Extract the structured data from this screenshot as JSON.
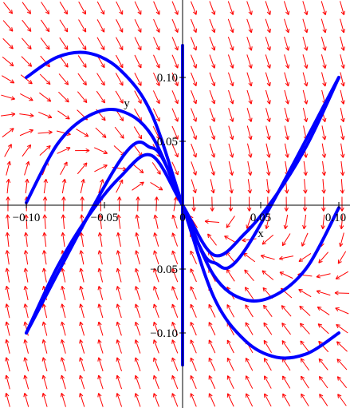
{
  "chart_data": {
    "type": "line",
    "title": "",
    "xlabel": "x",
    "ylabel": "y",
    "xlim": [
      -0.1,
      0.1
    ],
    "ylim": [
      -0.125,
      0.125
    ],
    "x_ticks": [
      -0.1,
      -0.05,
      0,
      0.05,
      0.1
    ],
    "x_tick_labels": [
      "−0.10",
      "−0.05",
      "0",
      "0.05",
      "0.10"
    ],
    "y_ticks": [
      -0.1,
      -0.05,
      0.05,
      0.1
    ],
    "y_tick_labels": [
      "−0.10",
      "−0.05",
      "0.05",
      "0.10"
    ],
    "grid": false,
    "direction_field": {
      "color": "#ff0000",
      "description": "slope field arrows dx/dt = y, dy/dt = -3y - 2x scaled"
    },
    "series_color": "#0000ff",
    "series": [
      {
        "x": [
          -0.1,
          -0.08,
          -0.06,
          -0.04,
          -0.02,
          0,
          0.02,
          0.04,
          0.06,
          0.08,
          0.1
        ],
        "y": [
          0.1,
          0.116,
          0.119,
          0.106,
          0.072,
          0,
          -0.072,
          -0.106,
          -0.119,
          -0.116,
          -0.1
        ]
      },
      {
        "x": [
          -0.1,
          -0.08,
          -0.06,
          -0.04,
          -0.02,
          0,
          0.02,
          0.04,
          0.06,
          0.08,
          0.1
        ],
        "y": [
          0.002,
          0.048,
          0.07,
          0.074,
          0.055,
          0,
          -0.055,
          -0.074,
          -0.07,
          -0.048,
          -0.002
        ]
      },
      {
        "x": [
          -0.1,
          -0.08,
          -0.06,
          -0.04,
          -0.02,
          0,
          0.02,
          0.04,
          0.06,
          0.08,
          0.1
        ],
        "y": [
          -0.1,
          -0.048,
          -0.008,
          0.022,
          0.039,
          0,
          -0.039,
          -0.022,
          0.008,
          0.048,
          0.1
        ]
      },
      {
        "x": [
          -0.1,
          -0.04,
          -0.02,
          -0.01,
          0
        ],
        "y": [
          -0.1,
          0.035,
          0.045,
          0.03,
          0
        ]
      },
      {
        "x": [
          0,
          0.01,
          0.02,
          0.04,
          0.1
        ],
        "y": [
          0,
          -0.03,
          -0.045,
          -0.035,
          0.1
        ]
      },
      {
        "x": [
          0,
          0
        ],
        "y": [
          0.125,
          -0.125
        ]
      }
    ]
  }
}
